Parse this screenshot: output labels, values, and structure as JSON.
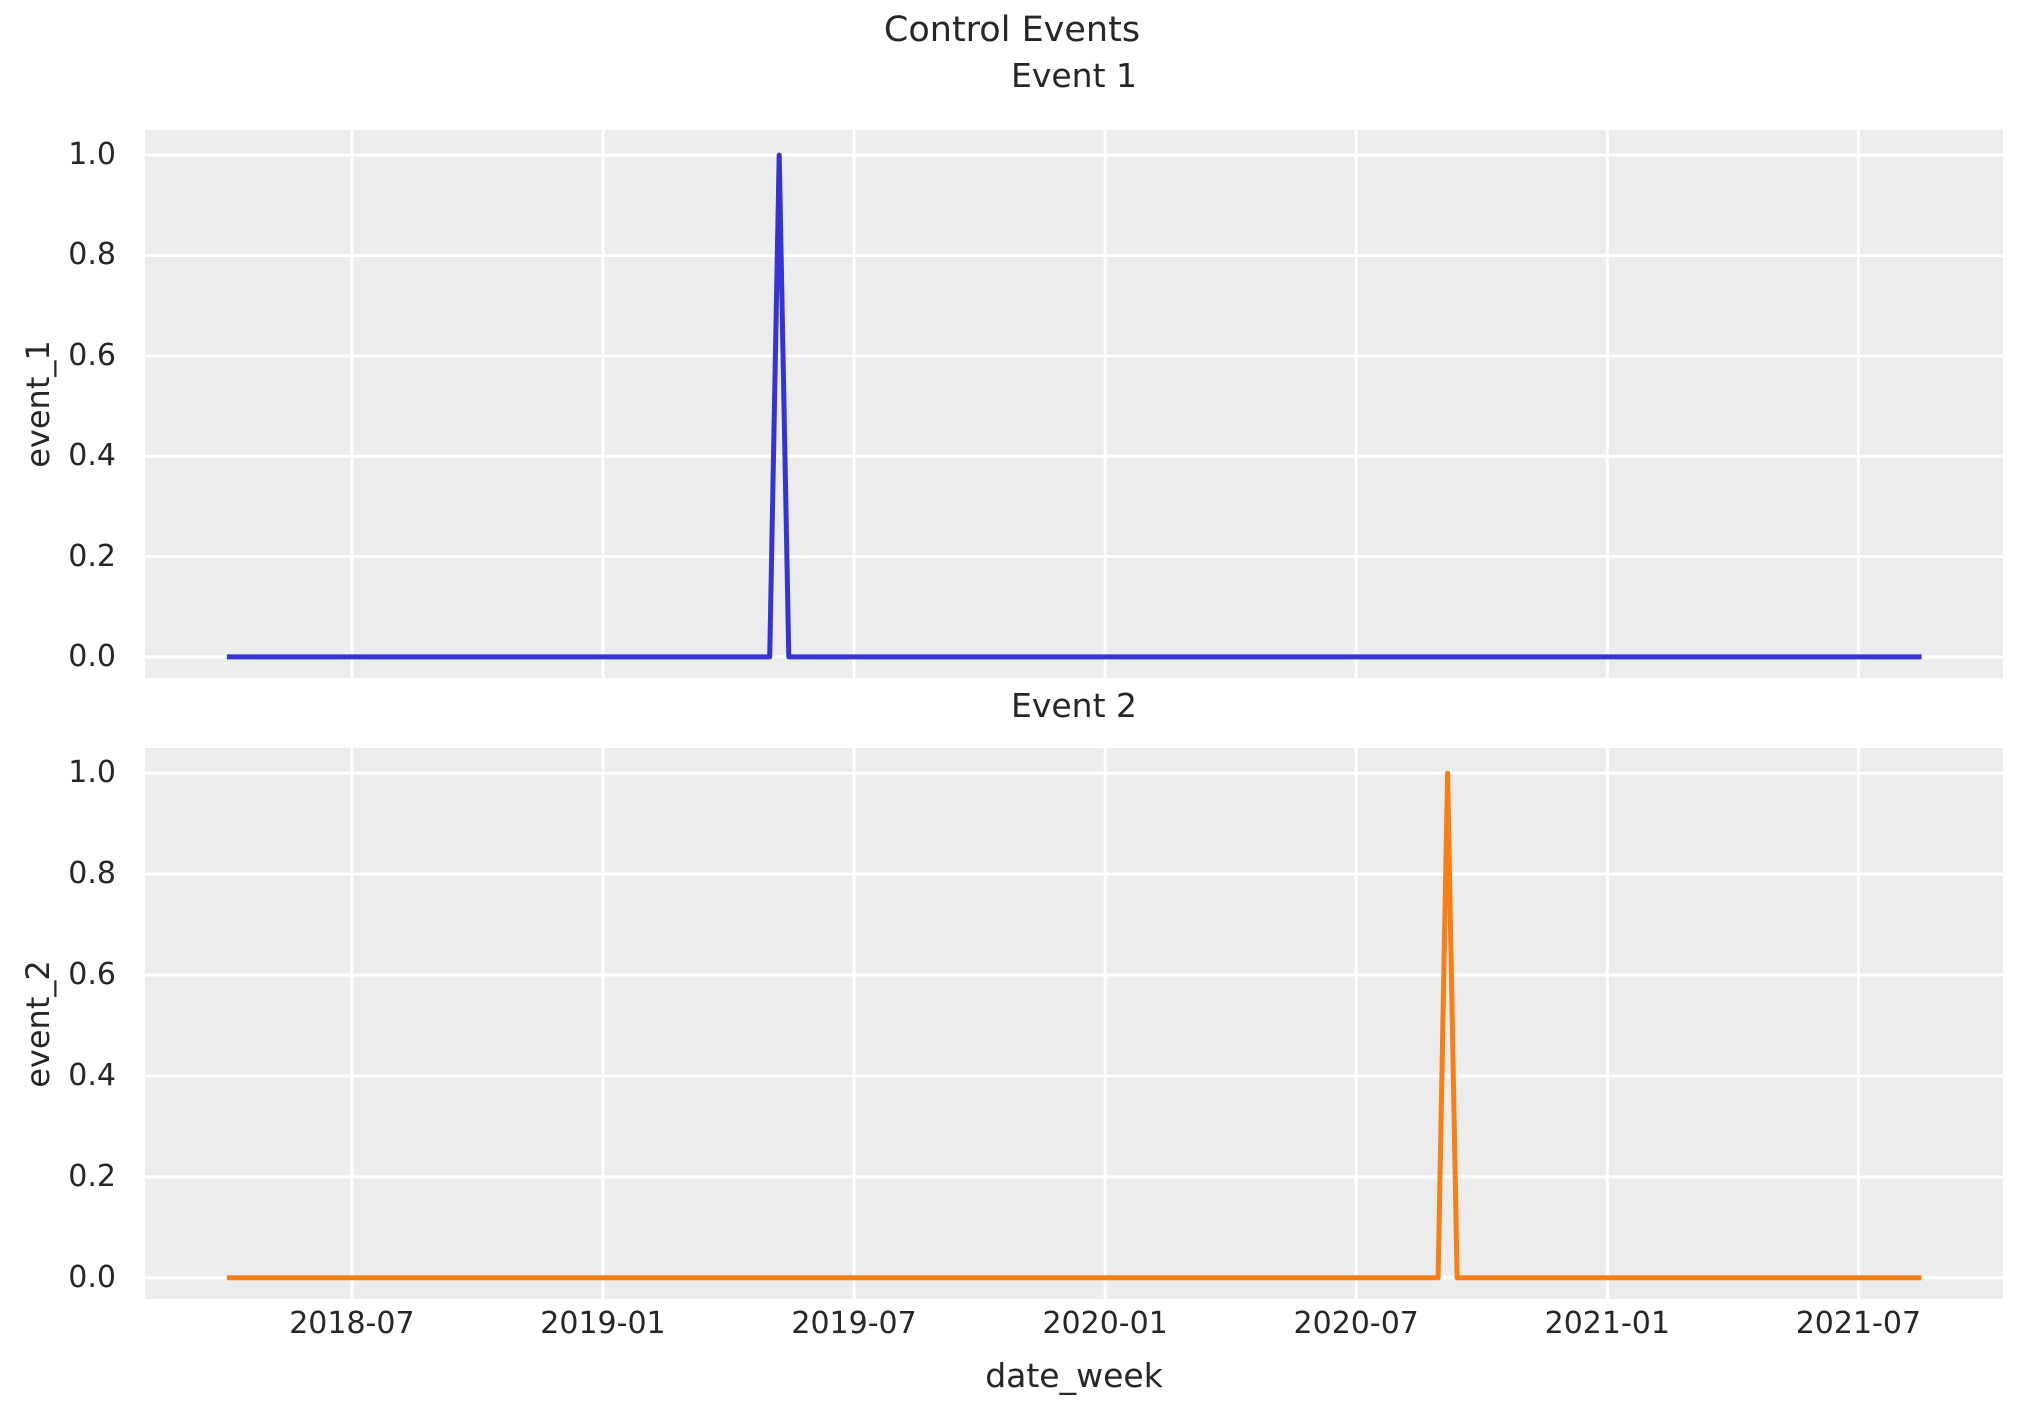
{
  "figure": {
    "title": "Control Events",
    "xlabel": "date_week",
    "background": "#ffffff",
    "plot_background": "#ececec",
    "gridline_color": "#ffffff",
    "text_color": "#262626"
  },
  "chart_data": [
    {
      "type": "line",
      "title": "Event 1",
      "ylabel": "event_1",
      "line_color": "#3533d3",
      "x_unit": "decimal_year",
      "xlim": [
        2018.088,
        2021.788
      ],
      "ylim": [
        -0.042,
        1.05
      ],
      "x_ticks": [
        2018.5,
        2019.0,
        2019.5,
        2020.0,
        2020.5,
        2021.0,
        2021.5
      ],
      "x_tick_labels": [
        "2018-07",
        "2019-01",
        "2019-07",
        "2020-01",
        "2020-07",
        "2021-01",
        "2021-07"
      ],
      "show_x_tick_labels": false,
      "y_ticks": [
        1.0,
        0.8,
        0.6,
        0.4,
        0.2,
        0.0
      ],
      "y_tick_labels": [
        "1.0",
        "0.8",
        "0.6",
        "0.4",
        "0.2",
        "0.0"
      ],
      "grid": true,
      "legend": "none",
      "spike_week": "2019-05-06",
      "spike_value": 1.0,
      "baseline_value": 0.0,
      "points": [
        [
          2018.251,
          0
        ],
        [
          2019.332,
          0
        ],
        [
          2019.351,
          1
        ],
        [
          2019.37,
          0
        ],
        [
          2021.626,
          0
        ]
      ]
    },
    {
      "type": "line",
      "title": "Event 2",
      "ylabel": "event_2",
      "line_color": "#f87e16",
      "x_unit": "decimal_year",
      "xlim": [
        2018.088,
        2021.788
      ],
      "ylim": [
        -0.042,
        1.05
      ],
      "x_ticks": [
        2018.5,
        2019.0,
        2019.5,
        2020.0,
        2020.5,
        2021.0,
        2021.5
      ],
      "x_tick_labels": [
        "2018-07",
        "2019-01",
        "2019-07",
        "2020-01",
        "2020-07",
        "2021-01",
        "2021-07"
      ],
      "show_x_tick_labels": true,
      "y_ticks": [
        1.0,
        0.8,
        0.6,
        0.4,
        0.2,
        0.0
      ],
      "y_tick_labels": [
        "1.0",
        "0.8",
        "0.6",
        "0.4",
        "0.2",
        "0.0"
      ],
      "grid": true,
      "legend": "none",
      "spike_week": "2020-09-07",
      "spike_value": 1.0,
      "baseline_value": 0.0,
      "points": [
        [
          2018.251,
          0
        ],
        [
          2020.663,
          0
        ],
        [
          2020.682,
          1
        ],
        [
          2020.701,
          0
        ],
        [
          2021.626,
          0
        ]
      ]
    }
  ]
}
